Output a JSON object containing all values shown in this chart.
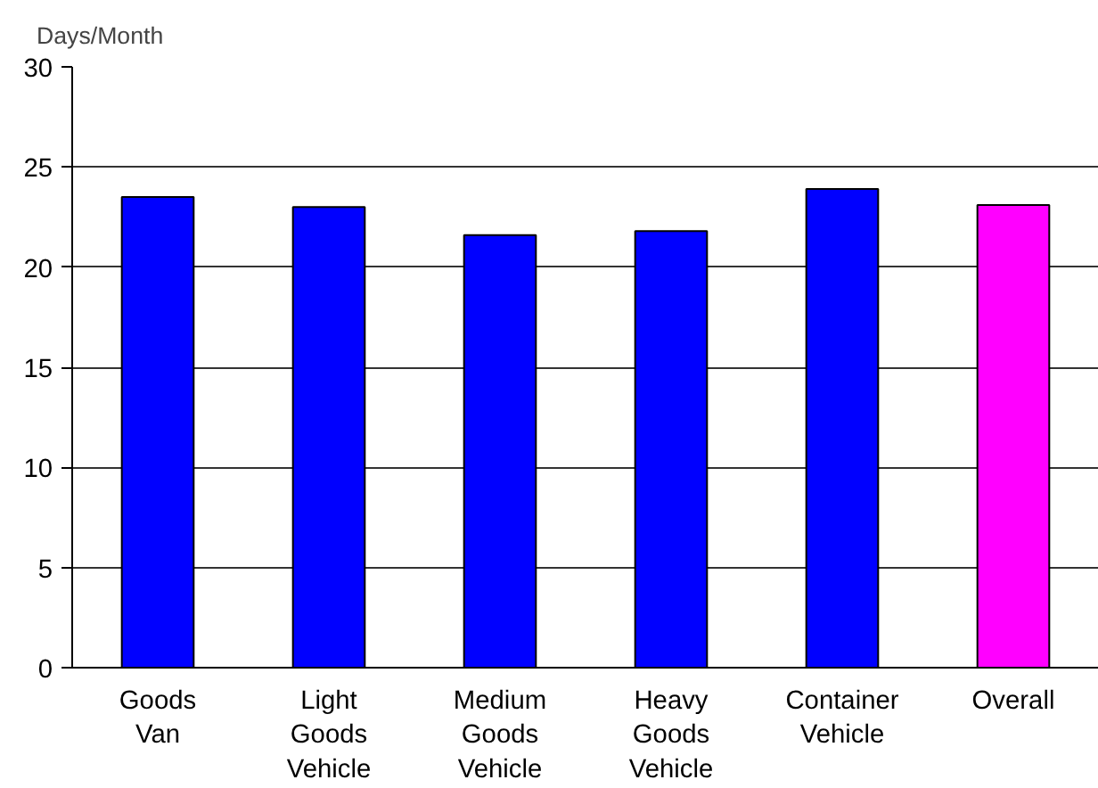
{
  "chart_data": {
    "type": "bar",
    "ylabel": "Days/Month",
    "categories": [
      "Goods Van",
      "Light Goods Vehicle",
      "Medium Goods Vehicle",
      "Heavy Goods Vehicle",
      "Container Vehicle",
      "Overall"
    ],
    "values": [
      23.5,
      23.0,
      21.6,
      21.8,
      23.9,
      23.1
    ],
    "colors": [
      "#0000ff",
      "#0000ff",
      "#0000ff",
      "#0000ff",
      "#0000ff",
      "#ff00ff"
    ],
    "ylim": [
      0,
      30
    ],
    "yticks": [
      0,
      5,
      10,
      15,
      20,
      25,
      30
    ],
    "grid": "y"
  }
}
